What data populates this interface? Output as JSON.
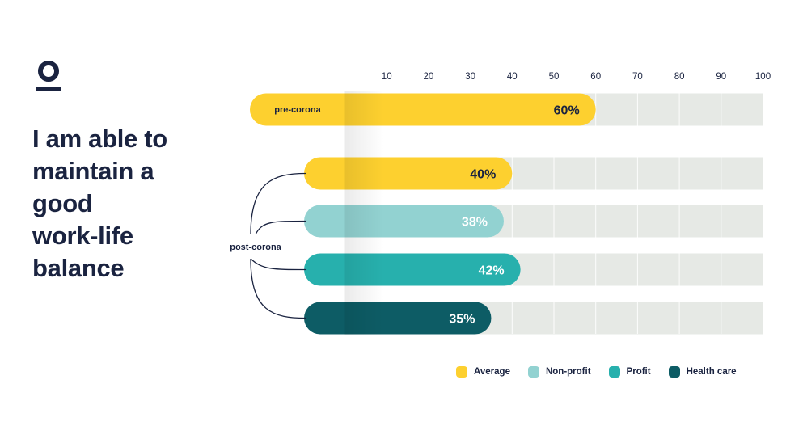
{
  "headline": [
    "I am able to",
    "maintain a",
    "good",
    "work-life",
    "balance"
  ],
  "group_labels": {
    "pre": "pre-corona",
    "post": "post-corona"
  },
  "colors": {
    "average": "#fdd02f",
    "non_profit": "#92d2d1",
    "profit": "#27b0ad",
    "health_care": "#0d5c65",
    "track": "#e6e9e5",
    "text": "#1a2340"
  },
  "chart_data": {
    "type": "bar",
    "orientation": "horizontal",
    "xlim": [
      0,
      100
    ],
    "ticks": [
      10,
      20,
      30,
      40,
      50,
      60,
      70,
      80,
      90,
      100
    ],
    "grid": true,
    "legend_position": "bottom-right",
    "bars": [
      {
        "group": "pre-corona",
        "series": "Average",
        "value": 60,
        "label": "60%"
      },
      {
        "group": "post-corona",
        "series": "Average",
        "value": 40,
        "label": "40%"
      },
      {
        "group": "post-corona",
        "series": "Non-profit",
        "value": 38,
        "label": "38%"
      },
      {
        "group": "post-corona",
        "series": "Profit",
        "value": 42,
        "label": "42%"
      },
      {
        "group": "post-corona",
        "series": "Health care",
        "value": 35,
        "label": "35%"
      }
    ],
    "legend": [
      "Average",
      "Non-profit",
      "Profit",
      "Health care"
    ]
  }
}
